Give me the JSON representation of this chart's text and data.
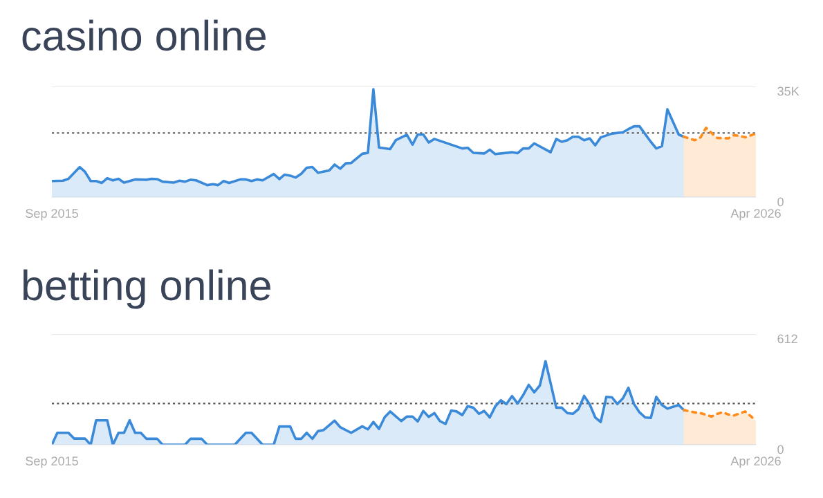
{
  "chart_data": [
    {
      "type": "area",
      "title": "casino online",
      "xlim": [
        "2015-09",
        "2026-04"
      ],
      "xticks": [
        {
          "value": "2015-09",
          "label": "Sep 2015"
        },
        {
          "value": "2026-04",
          "label": "Apr 2026"
        }
      ],
      "ylim": [
        0,
        35000
      ],
      "yticks": [
        {
          "value": 35000,
          "label": "35K"
        },
        0
      ],
      "grid": "y",
      "ref_lines": [
        {
          "axis": "y",
          "value": 20300,
          "color": "#555555",
          "line_style": "dotted"
        }
      ],
      "series": [
        {
          "color": "#3a8ad9",
          "line_style": "solid",
          "x": [
            "2015-09",
            "2015-11",
            "2015-12",
            "2016-02",
            "2016-03",
            "2016-04",
            "2016-05",
            "2016-06",
            "2016-07",
            "2016-08",
            "2016-09",
            "2016-10",
            "2016-12",
            "2017-02",
            "2017-03",
            "2017-04",
            "2017-05",
            "2017-07",
            "2017-08",
            "2017-09",
            "2017-10",
            "2017-11",
            "2018-01",
            "2018-02",
            "2018-03",
            "2018-04",
            "2018-05",
            "2018-07",
            "2018-08",
            "2018-09",
            "2018-10",
            "2018-11",
            "2019-01",
            "2019-02",
            "2019-03",
            "2019-04",
            "2019-05",
            "2019-06",
            "2019-07",
            "2019-08",
            "2019-09",
            "2019-11",
            "2019-12",
            "2020-01",
            "2020-02",
            "2020-03",
            "2020-05",
            "2020-06",
            "2020-07",
            "2020-08",
            "2020-10",
            "2020-11",
            "2021-01",
            "2021-02",
            "2021-03",
            "2021-04",
            "2021-05",
            "2021-06",
            "2021-09",
            "2021-11",
            "2021-12",
            "2022-01",
            "2022-03",
            "2022-04",
            "2022-05",
            "2022-08",
            "2022-09",
            "2022-10",
            "2022-11",
            "2022-12",
            "2023-03",
            "2023-04",
            "2023-05",
            "2023-06",
            "2023-07",
            "2023-08",
            "2023-09",
            "2023-10",
            "2023-11",
            "2023-12",
            "2024-02",
            "2024-04",
            "2024-05",
            "2024-06",
            "2024-07",
            "2024-09",
            "2024-10",
            "2024-11",
            "2024-12",
            "2025-02",
            "2025-03"
          ],
          "values": [
            5100,
            5200,
            5800,
            9500,
            8000,
            5100,
            5100,
            4500,
            6000,
            5300,
            5800,
            4600,
            5600,
            5500,
            5800,
            5700,
            4900,
            4600,
            5200,
            4900,
            5500,
            5300,
            3800,
            4100,
            3800,
            5100,
            4500,
            5600,
            5600,
            5100,
            5600,
            5300,
            7300,
            5700,
            7100,
            6800,
            6200,
            7400,
            9300,
            9500,
            7700,
            8400,
            10300,
            9000,
            10700,
            10800,
            13700,
            14000,
            34100,
            15700,
            15200,
            18000,
            19700,
            16600,
            19800,
            19800,
            17300,
            18400,
            16600,
            15400,
            15600,
            14000,
            13800,
            15000,
            13600,
            14200,
            13900,
            15400,
            15400,
            17000,
            14200,
            18400,
            17500,
            18000,
            19100,
            19100,
            18000,
            18600,
            16400,
            18900,
            20100,
            20500,
            21500,
            22400,
            22400,
            17500,
            15400,
            16100,
            27800,
            19800,
            19100
          ]
        },
        {
          "color": "#ff8c1a",
          "line_style": "dotted",
          "x": [
            "2025-03",
            "2025-05",
            "2025-06",
            "2025-07",
            "2025-09",
            "2025-11",
            "2025-12",
            "2026-01",
            "2026-02",
            "2026-04"
          ],
          "values": [
            19100,
            18000,
            18900,
            21900,
            18700,
            18600,
            19600,
            19400,
            18900,
            20100
          ]
        }
      ]
    },
    {
      "type": "area",
      "title": "betting online",
      "xlim": [
        "2015-09",
        "2026-04"
      ],
      "xticks": [
        {
          "value": "2015-09",
          "label": "Sep 2015"
        },
        {
          "value": "2026-04",
          "label": "Apr 2026"
        }
      ],
      "ylim": [
        0,
        612
      ],
      "yticks": [
        612,
        0
      ],
      "grid": "y",
      "ref_lines": [
        {
          "axis": "y",
          "value": 228,
          "color": "#555555",
          "line_style": "dotted"
        }
      ],
      "series": [
        {
          "color": "#3a8ad9",
          "line_style": "solid",
          "x": [
            "2015-09",
            "2015-10",
            "2015-12",
            "2016-01",
            "2016-03",
            "2016-04",
            "2016-05",
            "2016-07",
            "2016-08",
            "2016-09",
            "2016-10",
            "2016-11",
            "2016-12",
            "2017-01",
            "2017-02",
            "2017-04",
            "2017-05",
            "2017-09",
            "2017-10",
            "2017-12",
            "2018-01",
            "2018-06",
            "2018-08",
            "2018-09",
            "2018-11",
            "2019-01",
            "2019-02",
            "2019-04",
            "2019-05",
            "2019-06",
            "2019-07",
            "2019-08",
            "2019-09",
            "2019-10",
            "2019-12",
            "2020-01",
            "2020-03",
            "2020-05",
            "2020-06",
            "2020-07",
            "2020-08",
            "2020-09",
            "2020-10",
            "2020-12",
            "2021-01",
            "2021-02",
            "2021-03",
            "2021-04",
            "2021-05",
            "2021-06",
            "2021-07",
            "2021-08",
            "2021-09",
            "2021-10",
            "2021-11",
            "2021-12",
            "2022-01",
            "2022-02",
            "2022-03",
            "2022-04",
            "2022-05",
            "2022-06",
            "2022-07",
            "2022-08",
            "2022-09",
            "2022-10",
            "2022-11",
            "2022-12",
            "2023-01",
            "2023-02",
            "2023-04",
            "2023-05",
            "2023-06",
            "2023-07",
            "2023-08",
            "2023-09",
            "2023-10",
            "2023-11",
            "2023-12",
            "2024-01",
            "2024-02",
            "2024-03",
            "2024-04",
            "2024-05",
            "2024-06",
            "2024-07",
            "2024-08",
            "2024-09",
            "2024-10",
            "2024-11",
            "2024-12",
            "2025-02",
            "2025-03"
          ],
          "values": [
            0,
            66,
            66,
            34,
            34,
            0,
            135,
            135,
            0,
            66,
            66,
            135,
            66,
            66,
            33,
            33,
            0,
            0,
            33,
            33,
            0,
            0,
            66,
            66,
            0,
            0,
            101,
            101,
            33,
            33,
            66,
            33,
            75,
            81,
            133,
            97,
            66,
            102,
            85,
            126,
            88,
            152,
            184,
            131,
            156,
            156,
            129,
            187,
            154,
            175,
            131,
            115,
            189,
            184,
            164,
            213,
            205,
            171,
            187,
            151,
            212,
            246,
            225,
            269,
            228,
            274,
            331,
            290,
            328,
            462,
            205,
            205,
            175,
            171,
            197,
            270,
            225,
            151,
            126,
            265,
            262,
            225,
            257,
            315,
            225,
            179,
            151,
            148,
            265,
            220,
            200,
            220,
            192
          ]
        },
        {
          "color": "#ff8c1a",
          "line_style": "dotted",
          "x": [
            "2025-03",
            "2025-05",
            "2025-06",
            "2025-08",
            "2025-09",
            "2025-10",
            "2025-11",
            "2025-12",
            "2026-02",
            "2026-04"
          ],
          "values": [
            192,
            179,
            175,
            156,
            171,
            180,
            167,
            162,
            184,
            134
          ]
        }
      ]
    }
  ]
}
